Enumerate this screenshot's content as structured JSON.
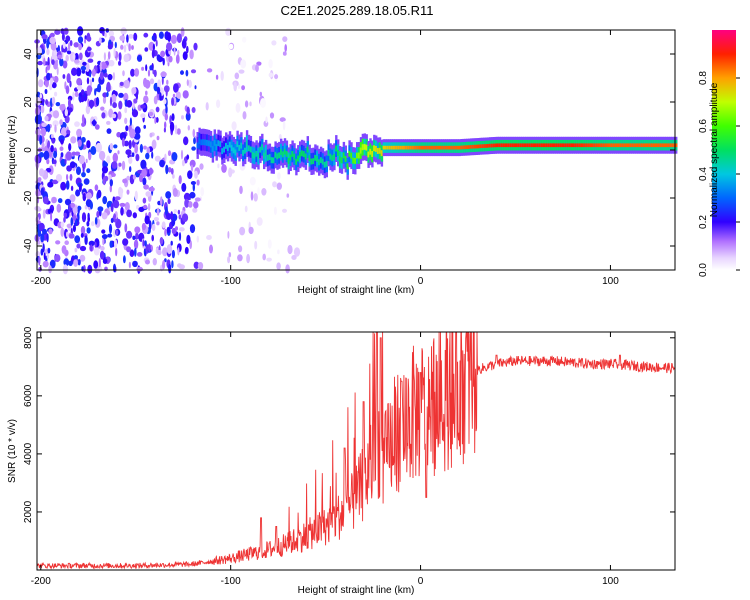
{
  "title": "C2E1.2025.289.18.05.R11",
  "chart_data": [
    {
      "type": "heatmap",
      "xlabel": "Height of straight line (km)",
      "ylabel": "Frequency (Hz)",
      "xlim": [
        -202,
        134
      ],
      "ylim": [
        -50,
        50
      ],
      "xticks": [
        -200,
        -100,
        0,
        100
      ],
      "xtick_labels": [
        "-200",
        "-100",
        "0",
        "100"
      ],
      "yticks": [
        -40,
        -20,
        0,
        20,
        40
      ],
      "ytick_labels": [
        "-40",
        "-20",
        "0",
        "20",
        "40"
      ],
      "colorbar": {
        "label": "Normalized spectral amplitude",
        "range": [
          0,
          1
        ],
        "ticks": [
          0.0,
          0.2,
          0.4,
          0.6,
          0.8
        ],
        "tick_labels": [
          "0.0",
          "0.2",
          "0.4",
          "0.6",
          "0.8"
        ],
        "colors": [
          "#ffffff",
          "#d9b3ff",
          "#7a00ff",
          "#0000ff",
          "#00c8ff",
          "#00ff80",
          "#80ff00",
          "#ffff00",
          "#ff8000",
          "#ff0000",
          "#ff0080"
        ]
      },
      "trace": {
        "x": [
          -118,
          -110,
          -100,
          -90,
          -80,
          -70,
          -60,
          -50,
          -45,
          -40,
          -30,
          -20,
          -10,
          0,
          20,
          40,
          60,
          80,
          100,
          134
        ],
        "freq": [
          2,
          2,
          1,
          0,
          -2,
          -3,
          -2,
          -4,
          0,
          -5,
          0,
          1,
          1,
          1,
          1,
          2,
          2,
          2,
          2,
          2
        ],
        "amplitude": [
          0.3,
          0.35,
          0.4,
          0.45,
          0.45,
          0.5,
          0.5,
          0.45,
          0.5,
          0.55,
          0.7,
          0.75,
          0.8,
          0.85,
          0.85,
          0.9,
          0.9,
          0.9,
          0.85,
          0.85
        ]
      },
      "noise_region": {
        "x_start": -202,
        "x_end": -118,
        "x_sparse_end": -65,
        "amplitude": 0.2
      }
    },
    {
      "type": "line",
      "xlabel": "Height of straight line (km)",
      "ylabel": "SNR (10 * v/v)",
      "xlim": [
        -202,
        134
      ],
      "ylim": [
        0,
        8200
      ],
      "xticks": [
        -200,
        -100,
        0,
        100
      ],
      "xtick_labels": [
        "-200",
        "-100",
        "0",
        "100"
      ],
      "yticks": [
        2000,
        4000,
        6000,
        8000
      ],
      "ytick_labels": [
        "2000",
        "4000",
        "6000",
        "8000"
      ],
      "color": "#ee3333",
      "envelope": {
        "x": [
          -202,
          -180,
          -150,
          -120,
          -110,
          -100,
          -90,
          -80,
          -70,
          -60,
          -50,
          -40,
          -35,
          -30,
          -25,
          -22,
          -20,
          -15,
          -10,
          -5,
          0,
          10,
          20,
          30,
          40,
          50,
          60,
          70,
          80,
          90,
          100,
          110,
          120,
          134
        ],
        "y": [
          150,
          150,
          150,
          200,
          300,
          400,
          550,
          700,
          900,
          1200,
          1500,
          2000,
          2400,
          3000,
          3800,
          4500,
          3500,
          4500,
          5000,
          5300,
          5500,
          6000,
          6500,
          6900,
          7100,
          7200,
          7200,
          7200,
          7150,
          7100,
          7100,
          7050,
          7000,
          6950
        ]
      },
      "spikes": [
        {
          "x": -84,
          "y": 1800
        },
        {
          "x": -76,
          "y": 1500
        },
        {
          "x": -40,
          "y": 4200
        },
        {
          "x": -30,
          "y": 5800
        },
        {
          "x": -23,
          "y": 8200
        },
        {
          "x": -21,
          "y": 8000
        },
        {
          "x": -10,
          "y": 6500
        },
        {
          "x": 0,
          "y": 6800
        },
        {
          "x": 3,
          "y": 2500
        },
        {
          "x": 40,
          "y": 7400
        },
        {
          "x": 105,
          "y": 7400
        }
      ]
    }
  ]
}
